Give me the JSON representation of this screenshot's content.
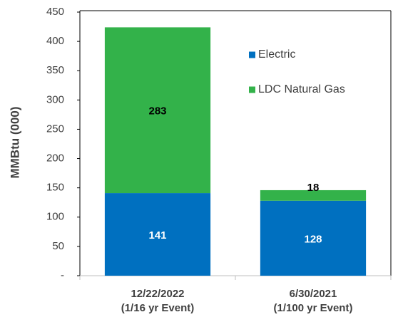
{
  "chart_data": {
    "type": "stacked_bar",
    "y_label": "MMBtu (000)",
    "categories": [
      [
        "12/22/2022",
        "(1/16 yr Event)"
      ],
      [
        "6/30/2021",
        "(1/100 yr Event)"
      ]
    ],
    "series": [
      {
        "name": "Electric",
        "color": "#0070c0",
        "values": [
          141,
          128
        ]
      },
      {
        "name": "LDC Natural Gas",
        "color": "#33b24a",
        "values": [
          283,
          18
        ]
      }
    ],
    "ylim": [
      0,
      450
    ],
    "yticks": [
      {
        "value": 0,
        "label": "-"
      },
      50,
      100,
      150,
      200,
      250,
      300,
      350,
      400,
      450
    ]
  }
}
